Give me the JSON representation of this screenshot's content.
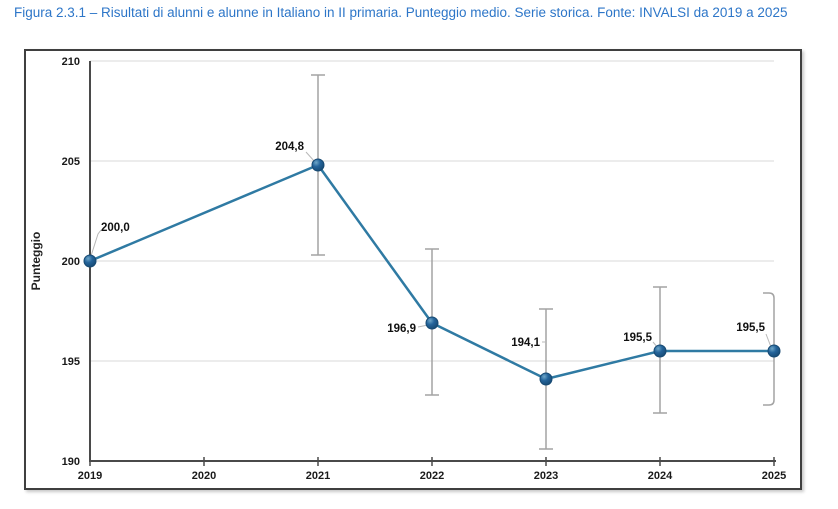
{
  "figure": {
    "title": "Figura 2.3.1 – Risultati di alunni e alunne in Italiano in II primaria. Punteggio medio. Serie storica. Fonte: INVALSI da 2019 a 2025"
  },
  "chart_data": {
    "type": "line",
    "title": "Figura 2.3.1 – Risultati di alunni e alunne in Italiano in II primaria. Punteggio medio. Serie storica. Fonte: INVALSI da 2019 a 2025",
    "xlabel": "",
    "ylabel": "Punteggio",
    "x": [
      2019,
      2020,
      2021,
      2022,
      2023,
      2024,
      2025
    ],
    "x_tick_labels": [
      "2019",
      "2020",
      "2021",
      "2022",
      "2023",
      "2024",
      "2025"
    ],
    "y_ticks": [
      190,
      195,
      200,
      205,
      210
    ],
    "y_tick_labels": [
      "190",
      "195",
      "200",
      "205",
      "210"
    ],
    "ylim": [
      190,
      210
    ],
    "grid": true,
    "legend": "none",
    "series": [
      {
        "name": "Punteggio medio",
        "points": [
          {
            "x": 2019,
            "y": 200.0,
            "label": "200,0",
            "ci_low": null,
            "ci_high": null,
            "ci_style": "none",
            "label_anchor": "start",
            "label_offset": [
              11,
              -30
            ],
            "leader": [
              [
                1,
                -5
              ],
              [
                8,
                -27
              ],
              [
                11,
                -31
              ]
            ]
          },
          {
            "x": 2021,
            "y": 204.8,
            "label": "204,8",
            "ci_low": 200.3,
            "ci_high": 209.3,
            "ci_style": "bar",
            "label_anchor": "end",
            "label_offset": [
              -14,
              -15
            ],
            "leader": [
              [
                -12,
                -13
              ],
              [
                -3,
                -3
              ]
            ]
          },
          {
            "x": 2022,
            "y": 196.9,
            "label": "196,9",
            "ci_low": 193.3,
            "ci_high": 200.6,
            "ci_style": "bar",
            "label_anchor": "end",
            "label_offset": [
              -16,
              9
            ],
            "leader": [
              [
                -14,
                4
              ],
              [
                -4,
                2
              ]
            ]
          },
          {
            "x": 2023,
            "y": 194.1,
            "label": "194,1",
            "ci_low": 190.6,
            "ci_high": 197.6,
            "ci_style": "bar",
            "label_anchor": "end",
            "label_offset": [
              -6,
              -33
            ],
            "leader": [
              [
                -4,
                -37
              ],
              [
                0,
                -37
              ]
            ]
          },
          {
            "x": 2024,
            "y": 195.5,
            "label": "195,5",
            "ci_low": 192.4,
            "ci_high": 198.7,
            "ci_style": "bar",
            "label_anchor": "end",
            "label_offset": [
              -8,
              -10
            ],
            "leader": [
              [
                -7,
                -9
              ],
              [
                -2,
                -3
              ]
            ]
          },
          {
            "x": 2025,
            "y": 195.5,
            "label": "195,5",
            "ci_low": 192.8,
            "ci_high": 198.4,
            "ci_style": "bracket",
            "label_anchor": "end",
            "label_offset": [
              -9,
              -20
            ],
            "leader": [
              [
                -8,
                -17
              ],
              [
                -3,
                -4
              ]
            ]
          }
        ]
      }
    ],
    "colors": {
      "line": "#2f7aa3",
      "marker_dark": "#174a73",
      "marker_mid": "#24649b",
      "marker_light": "#6fa7c8",
      "error_bar": "#a3a3a3",
      "leader": "#b8b8b8",
      "grid": "#d9d9d9",
      "axis": "#4a4a4a",
      "title": "#2d76c8",
      "text": "#1a1a1a"
    }
  }
}
